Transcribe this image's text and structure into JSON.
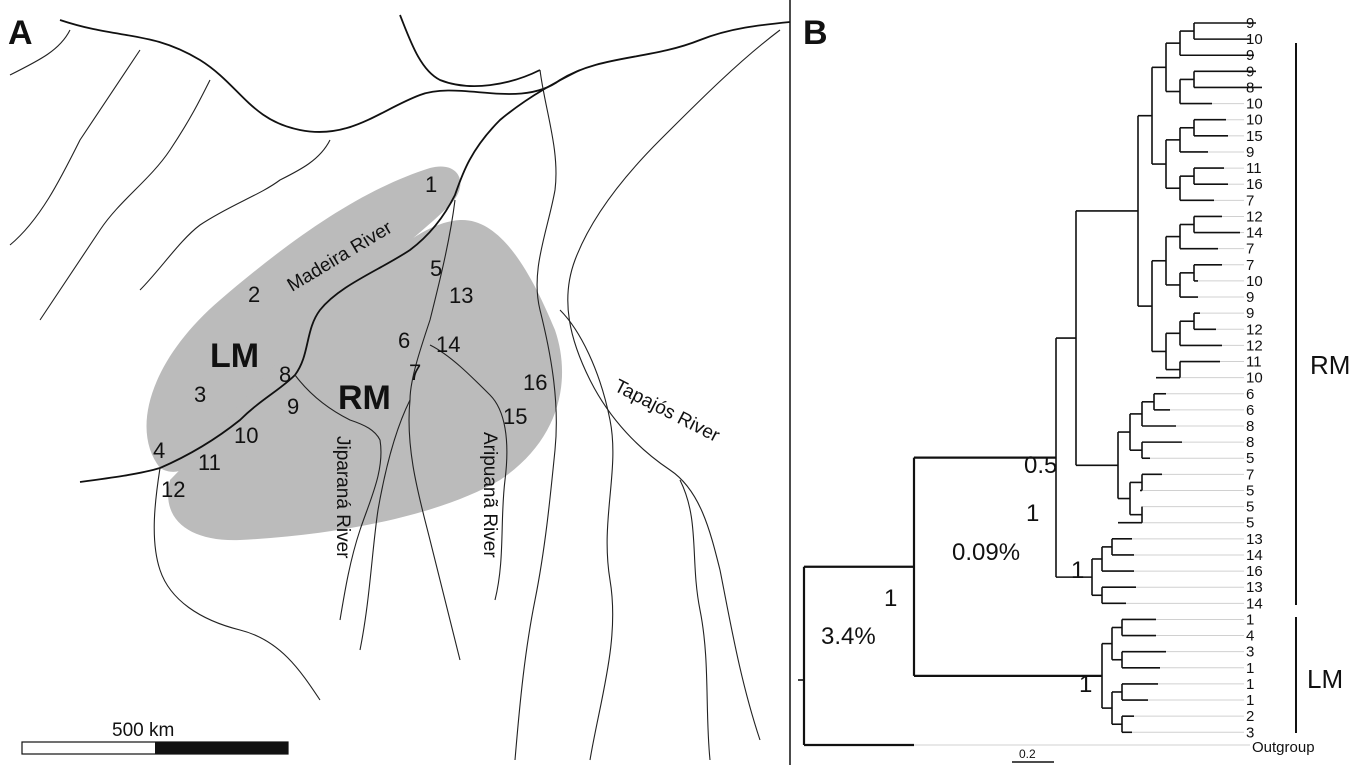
{
  "panel_a": {
    "letter": "A",
    "sites": [
      {
        "id": "1",
        "label": "1"
      },
      {
        "id": "2",
        "label": "2"
      },
      {
        "id": "3",
        "label": "3"
      },
      {
        "id": "4",
        "label": "4"
      },
      {
        "id": "5",
        "label": "5"
      },
      {
        "id": "6",
        "label": "6"
      },
      {
        "id": "7",
        "label": "7"
      },
      {
        "id": "8",
        "label": "8"
      },
      {
        "id": "9",
        "label": "9"
      },
      {
        "id": "10",
        "label": "10"
      },
      {
        "id": "11",
        "label": "11"
      },
      {
        "id": "12",
        "label": "12"
      },
      {
        "id": "13",
        "label": "13"
      },
      {
        "id": "14",
        "label": "14"
      },
      {
        "id": "15",
        "label": "15"
      },
      {
        "id": "16",
        "label": "16"
      }
    ],
    "regions": {
      "left": "LM",
      "right": "RM"
    },
    "rivers": {
      "madeira": "Madeira River",
      "jiparana": "Jiparaná River",
      "aripuana": "Aripuanã River",
      "tapajos": "Tapajós River"
    },
    "scale_bar": "500 km"
  },
  "panel_b": {
    "letter": "B",
    "leaves": [
      "9",
      "10",
      "9",
      "9",
      "8",
      "10",
      "10",
      "15",
      "9",
      "11",
      "16",
      "7",
      "12",
      "14",
      "7",
      "7",
      "10",
      "9",
      "9",
      "12",
      "12",
      "11",
      "10",
      "6",
      "6",
      "8",
      "8",
      "5",
      "7",
      "5",
      "5",
      "5",
      "13",
      "14",
      "16",
      "13",
      "14",
      "1",
      "4",
      "3",
      "1",
      "1",
      "1",
      "2",
      "3"
    ],
    "outgroup": "Outgroup",
    "support": {
      "root": "1",
      "root_divergence": "3.4%",
      "rm_lm_split": "1",
      "rm_divergence": "0.09%",
      "rm_inner": "0.5",
      "rm_subclade": "1",
      "lm_clade": "1"
    },
    "clades": {
      "rm": "RM",
      "lm": "LM"
    },
    "scale_bar": "0.2"
  }
}
